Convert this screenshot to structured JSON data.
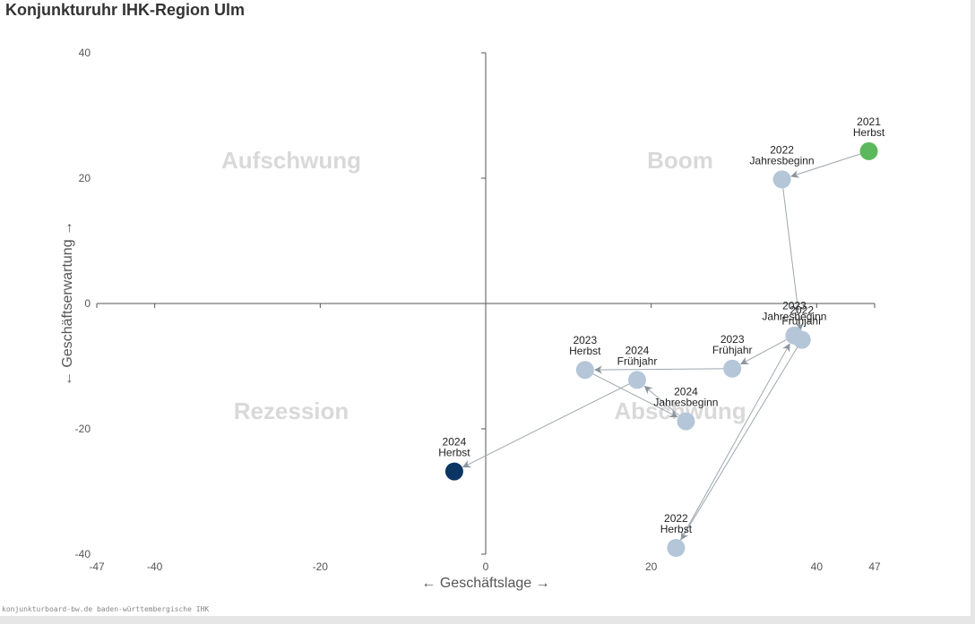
{
  "title": "Konjunkturuhr IHK-Region Ulm",
  "footer": "konjunkturboard-bw.de baden-württembergische IHK",
  "chart_data": {
    "type": "scatter",
    "xlabel": "← Geschäftslage →",
    "ylabel": "← Geschäftserwartung →",
    "xlim": [
      -47,
      47
    ],
    "ylim": [
      -40,
      40
    ],
    "xticks": [
      -47,
      -40,
      -20,
      0,
      20,
      40,
      47
    ],
    "yticks": [
      40,
      20,
      0,
      -20,
      -40
    ],
    "grid": false,
    "quadrants": [
      {
        "label": "Aufschwung",
        "x": -23.5,
        "y": 20
      },
      {
        "label": "Boom",
        "x": 23.5,
        "y": 20
      },
      {
        "label": "Rezession",
        "x": -23.5,
        "y": -20
      },
      {
        "label": "Abschwung",
        "x": 23.5,
        "y": -20
      }
    ],
    "points": [
      {
        "year": "2021",
        "season": "Herbst",
        "x": 46.3,
        "y": 24.3,
        "color": "#5cb85c"
      },
      {
        "year": "2022",
        "season": "Jahresbeginn",
        "x": 35.8,
        "y": 19.8,
        "color": "#b4c6d8"
      },
      {
        "year": "2022",
        "season": "Frühjahr",
        "x": 38.2,
        "y": -5.8,
        "color": "#b4c6d8"
      },
      {
        "year": "2022",
        "season": "Herbst",
        "x": 23.0,
        "y": -39.0,
        "color": "#b4c6d8"
      },
      {
        "year": "2023",
        "season": "Jahresbeginn",
        "x": 37.3,
        "y": -5.1,
        "color": "#b4c6d8"
      },
      {
        "year": "2023",
        "season": "Frühjahr",
        "x": 29.8,
        "y": -10.4,
        "color": "#b4c6d8"
      },
      {
        "year": "2023",
        "season": "Herbst",
        "x": 12.0,
        "y": -10.6,
        "color": "#b4c6d8"
      },
      {
        "year": "2024",
        "season": "Jahresbeginn",
        "x": 24.2,
        "y": -18.8,
        "color": "#b4c6d8"
      },
      {
        "year": "2024",
        "season": "Frühjahr",
        "x": 18.3,
        "y": -12.2,
        "color": "#b4c6d8"
      },
      {
        "year": "2024",
        "season": "Herbst",
        "x": -3.8,
        "y": -26.8,
        "color": "#0b3563"
      }
    ],
    "colors": {
      "axis": "#555555",
      "arrow": "#9ea6ae",
      "quadrant_text": "#d9d9d9"
    }
  }
}
